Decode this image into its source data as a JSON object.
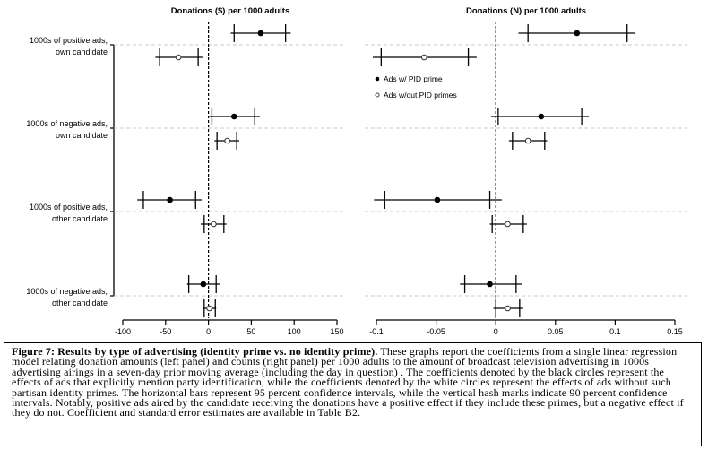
{
  "chart_data": [
    {
      "type": "scatter",
      "title": "Donations ($) per 1000 adults",
      "xlim": [
        -100,
        150
      ],
      "xticks": [
        "-100",
        "-50",
        "0",
        "50",
        "100",
        "150"
      ],
      "xtick_values": [
        -100,
        -50,
        0,
        50,
        100,
        150
      ],
      "reference_line": 0,
      "grid": "dashed horizontal at categories",
      "categories": [
        "1000s of positive ads,\nown candidate",
        "1000s of negative ads,\nown candidate",
        "1000s of positive ads,\nother candidate",
        "1000s of negative ads,\nother candidate"
      ],
      "series": [
        {
          "marker": "filled",
          "estimate": [
            61,
            30,
            -45,
            -6
          ],
          "ci95": [
            [
              26,
              96
            ],
            [
              1,
              60
            ],
            [
              -83,
              -8
            ],
            [
              -25,
              13
            ]
          ],
          "ci90": [
            [
              30,
              90
            ],
            [
              4,
              54
            ],
            [
              -76,
              -15
            ],
            [
              -23,
              9
            ]
          ]
        },
        {
          "marker": "open",
          "estimate": [
            -35,
            22,
            6,
            1
          ],
          "ci95": [
            [
              -62,
              -7
            ],
            [
              7,
              36
            ],
            [
              -9,
              21
            ],
            [
              -6,
              9
            ]
          ],
          "ci90": [
            [
              -57,
              -12
            ],
            [
              10,
              33
            ],
            [
              -5,
              18
            ],
            [
              -5,
              8
            ]
          ]
        }
      ]
    },
    {
      "type": "scatter",
      "title": "Donations (N) per 1000 adults",
      "xlim": [
        -0.1,
        0.15
      ],
      "xticks": [
        "-0.1",
        "-0.05",
        "0",
        "0.05",
        "0.1",
        "0.15"
      ],
      "xtick_values": [
        -0.1,
        -0.05,
        0,
        0.05,
        0.1,
        0.15
      ],
      "reference_line": 0,
      "grid": "dashed horizontal at categories",
      "legend": "top-left",
      "series": [
        {
          "name": "Ads w/ PID prime",
          "marker": "filled",
          "estimate": [
            0.068,
            0.038,
            -0.049,
            -0.005
          ],
          "ci95": [
            [
              0.019,
              0.117
            ],
            [
              -0.004,
              0.078
            ],
            [
              -0.102,
              0.005
            ],
            [
              -0.03,
              0.022
            ]
          ],
          "ci90": [
            [
              0.027,
              0.11
            ],
            [
              0.002,
              0.072
            ],
            [
              -0.093,
              -0.005
            ],
            [
              -0.026,
              0.017
            ]
          ]
        },
        {
          "name": "Ads w/out PID primes",
          "marker": "open",
          "estimate": [
            -0.06,
            0.027,
            0.01,
            0.01
          ],
          "ci95": [
            [
              -0.103,
              -0.016
            ],
            [
              0.011,
              0.043
            ],
            [
              -0.005,
              0.026
            ],
            [
              -0.002,
              0.023
            ]
          ],
          "ci90": [
            [
              -0.096,
              -0.023
            ],
            [
              0.014,
              0.041
            ],
            [
              -0.003,
              0.023
            ],
            [
              0.0,
              0.02
            ]
          ]
        }
      ]
    }
  ],
  "caption": {
    "bold": "Figure 7: Results by type of advertising (identity prime vs. no identity prime).",
    "line1_rest": " These graphs report the coefficients from a single linear regression",
    "lines": [
      "model relating donation amounts (left panel) and counts (right panel) per 1000 adults to the amount of broadcast television advertising in 1000s",
      "advertising airings in a seven-day prior moving average (including the day in question) . The coefficients denoted by the black circles represent the",
      "effects of ads that explicitly mention party identification, while the coefficients denoted by the white circles represent the effects of ads without such",
      "partisan identity primes. The horizontal bars represent 95 percent confidence intervals, while the vertical hash marks indicate 90 percent confidence",
      "intervals.  Notably, positive ads aired by the candidate receiving the donations have a positive effect if they include these primes, but a negative effect if",
      "they do not.  Coefficient and standard error estimates are available in Table B2."
    ]
  }
}
